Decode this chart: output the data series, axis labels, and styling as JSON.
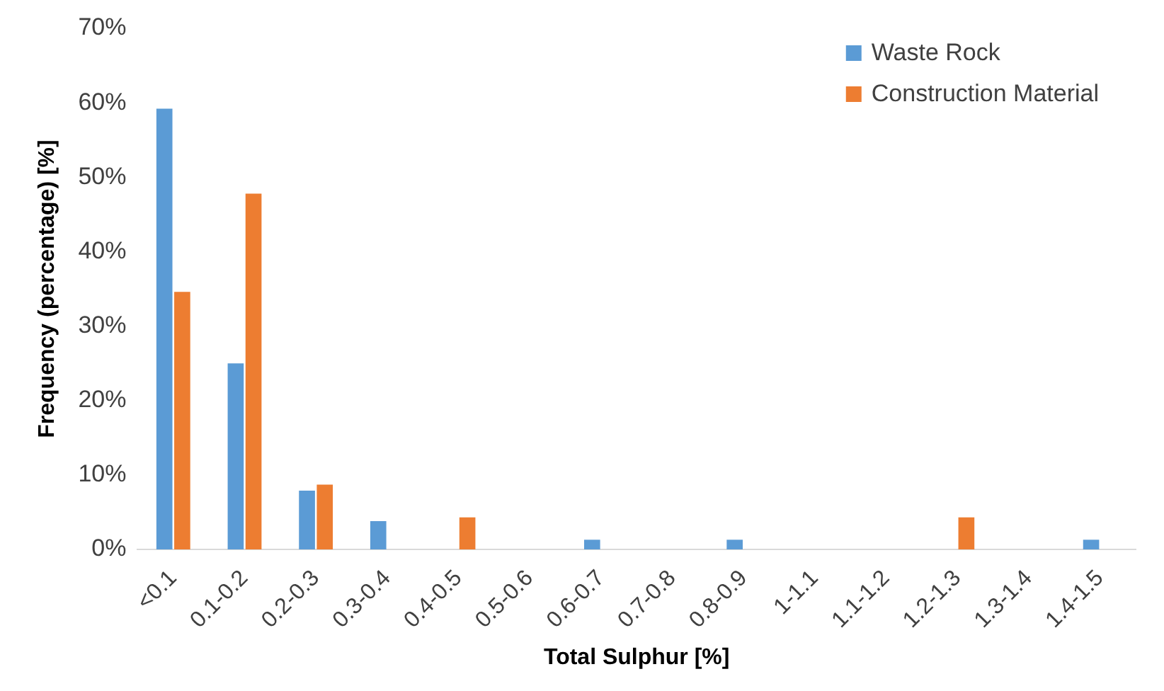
{
  "chart_data": {
    "type": "bar",
    "xlabel": "Total Sulphur [%]",
    "ylabel": "Frequency (percentage) [%]",
    "categories": [
      "<0.1",
      "0.1-0.2",
      "0.2-0.3",
      "0.3-0.4",
      "0.4-0.5",
      "0.5-0.6",
      "0.6-0.7",
      "0.7-0.8",
      "0.8-0.9",
      "1-1.1",
      "1.1-1.2",
      "1.2-1.3",
      "1.3-1.4",
      "1.4-1.5"
    ],
    "series": [
      {
        "name": "Waste Rock",
        "color": "#5b9bd5",
        "values": [
          59.2,
          25.0,
          7.9,
          3.8,
          0,
          0,
          1.3,
          0,
          1.3,
          0,
          0,
          0,
          0,
          1.3
        ]
      },
      {
        "name": "Construction Material",
        "color": "#ed7d31",
        "values": [
          34.6,
          47.8,
          8.7,
          0,
          4.3,
          0,
          0,
          0,
          0,
          0,
          0,
          4.3,
          0,
          0
        ]
      }
    ],
    "ylim": [
      0,
      70
    ],
    "yticks": [
      {
        "value": 0,
        "label": "0%"
      },
      {
        "value": 10,
        "label": "10%"
      },
      {
        "value": 20,
        "label": "20%"
      },
      {
        "value": 30,
        "label": "30%"
      },
      {
        "value": 40,
        "label": "40%"
      },
      {
        "value": 50,
        "label": "50%"
      },
      {
        "value": 60,
        "label": "60%"
      },
      {
        "value": 70,
        "label": "70%"
      }
    ],
    "grid": false,
    "legend": "top right"
  }
}
